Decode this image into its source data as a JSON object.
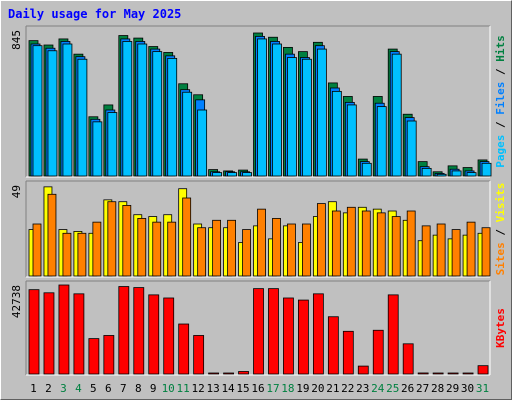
{
  "title": "Daily usage for May 2025",
  "chart_data": [
    {
      "type": "bar",
      "name": "hits-files-pages",
      "categories": [
        "1",
        "2",
        "3",
        "4",
        "5",
        "6",
        "7",
        "8",
        "9",
        "10",
        "11",
        "12",
        "13",
        "14",
        "15",
        "16",
        "17",
        "18",
        "19",
        "20",
        "21",
        "22",
        "23",
        "24",
        "25",
        "26",
        "27",
        "28",
        "29",
        "30",
        "31"
      ],
      "y_max_label": "845",
      "ylim": [
        0,
        845
      ],
      "series": [
        {
          "name": "Hits",
          "color": "#008040",
          "values": [
            800,
            774,
            810,
            720,
            350,
            420,
            830,
            815,
            765,
            730,
            545,
            480,
            38,
            30,
            35,
            845,
            820,
            760,
            735,
            790,
            550,
            470,
            100,
            470,
            750,
            365,
            85,
            25,
            60,
            50,
            95
          ]
        },
        {
          "name": "Files",
          "color": "#0080ff",
          "values": [
            780,
            755,
            795,
            705,
            335,
            390,
            810,
            795,
            750,
            710,
            510,
            450,
            25,
            25,
            25,
            825,
            795,
            720,
            700,
            770,
            520,
            435,
            85,
            430,
            735,
            345,
            55,
            15,
            40,
            30,
            85
          ]
        },
        {
          "name": "Pages",
          "color": "#00c0ff",
          "values": [
            770,
            740,
            780,
            690,
            320,
            375,
            795,
            780,
            735,
            695,
            495,
            390,
            20,
            20,
            20,
            810,
            780,
            700,
            690,
            750,
            500,
            420,
            75,
            410,
            720,
            325,
            45,
            10,
            30,
            20,
            75
          ]
        }
      ]
    },
    {
      "type": "bar",
      "name": "visits-sites",
      "categories": [
        "1",
        "2",
        "3",
        "4",
        "5",
        "6",
        "7",
        "8",
        "9",
        "10",
        "11",
        "12",
        "13",
        "14",
        "15",
        "16",
        "17",
        "18",
        "19",
        "20",
        "21",
        "22",
        "23",
        "24",
        "25",
        "26",
        "27",
        "28",
        "29",
        "30",
        "31"
      ],
      "y_max_label": "49",
      "ylim": [
        0,
        49
      ],
      "series": [
        {
          "name": "Visits",
          "color": "#ffff00",
          "values": [
            25,
            48,
            25,
            24,
            23,
            41,
            40,
            33,
            32,
            33,
            47,
            28,
            26,
            26,
            18,
            27,
            20,
            27,
            18,
            32,
            40,
            34,
            37,
            36,
            35,
            30,
            19,
            22,
            20,
            22,
            23
          ]
        },
        {
          "name": "Sites",
          "color": "#ff8000",
          "values": [
            28,
            44,
            23,
            23,
            29,
            40,
            38,
            31,
            29,
            29,
            42,
            26,
            30,
            30,
            25,
            36,
            31,
            28,
            28,
            39,
            35,
            37,
            35,
            34,
            32,
            35,
            27,
            28,
            25,
            29,
            26
          ]
        }
      ]
    },
    {
      "type": "bar",
      "name": "kbytes",
      "categories": [
        "1",
        "2",
        "3",
        "4",
        "5",
        "6",
        "7",
        "8",
        "9",
        "10",
        "11",
        "12",
        "13",
        "14",
        "15",
        "16",
        "17",
        "18",
        "19",
        "20",
        "21",
        "22",
        "23",
        "24",
        "25",
        "26",
        "27",
        "28",
        "29",
        "30",
        "31"
      ],
      "y_max_label": "42738",
      "ylim": [
        0,
        42738
      ],
      "series": [
        {
          "name": "KBytes",
          "color": "#ff0000",
          "values": [
            40500,
            39000,
            42738,
            38500,
            17000,
            18500,
            42000,
            41500,
            38000,
            36500,
            24000,
            18500,
            400,
            400,
            1200,
            41000,
            41000,
            36500,
            35500,
            38500,
            27500,
            20500,
            3800,
            21000,
            38000,
            14500,
            500,
            400,
            350,
            350,
            4000
          ]
        }
      ]
    }
  ],
  "legend": {
    "top": [
      {
        "label": "Pages",
        "color": "#00c0ff"
      },
      {
        "label": "Files",
        "color": "#0080ff"
      },
      {
        "label": "Hits",
        "color": "#008040"
      }
    ],
    "middle": [
      {
        "label": "Sites",
        "color": "#ff8000"
      },
      {
        "label": "Visits",
        "color": "#ffff00"
      }
    ],
    "bottom": [
      {
        "label": "KBytes",
        "color": "#ff0000"
      }
    ],
    "separator": " / "
  },
  "weekend_days": [
    "3",
    "4",
    "10",
    "11",
    "17",
    "18",
    "24",
    "25",
    "31"
  ],
  "colors": {
    "weekday_label": "#000000",
    "weekend_label": "#008040",
    "title": "#0000ff",
    "background": "#c0c0c0"
  }
}
